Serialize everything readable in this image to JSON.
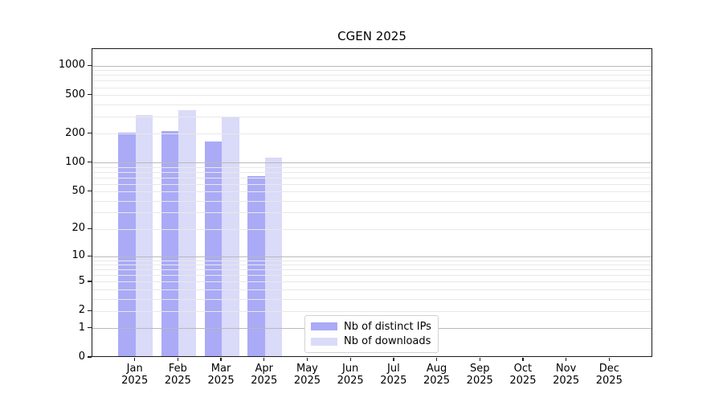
{
  "chart_data": {
    "type": "bar",
    "title": "CGEN 2025",
    "categories": [
      "Jan",
      "Feb",
      "Mar",
      "Apr",
      "May",
      "Jun",
      "Jul",
      "Aug",
      "Sep",
      "Oct",
      "Nov",
      "Dec"
    ],
    "x_tick_second_line": "2025",
    "series": [
      {
        "name": "Nb of distinct IPs",
        "color": "#aaaaf7",
        "values": [
          200,
          205,
          160,
          70,
          0,
          0,
          0,
          0,
          0,
          0,
          0,
          0
        ]
      },
      {
        "name": "Nb of downloads",
        "color": "#dadaf9",
        "values": [
          300,
          340,
          290,
          110,
          0,
          0,
          0,
          0,
          0,
          0,
          0,
          0
        ]
      }
    ],
    "xlabel": "",
    "ylabel": "",
    "yscale": "log1p",
    "ylim": [
      0,
      1500
    ],
    "y_ticks": [
      0,
      1,
      2,
      5,
      10,
      20,
      50,
      100,
      200,
      500,
      1000
    ],
    "grid": "on",
    "grid_major_at": [
      1,
      10,
      100,
      1000
    ],
    "legend_position": "lower center",
    "colors": {
      "grid_major": "#b9b9b9",
      "grid_minor": "#e8e8e8",
      "spine": "#1a1a1a",
      "background": "#ffffff"
    }
  }
}
